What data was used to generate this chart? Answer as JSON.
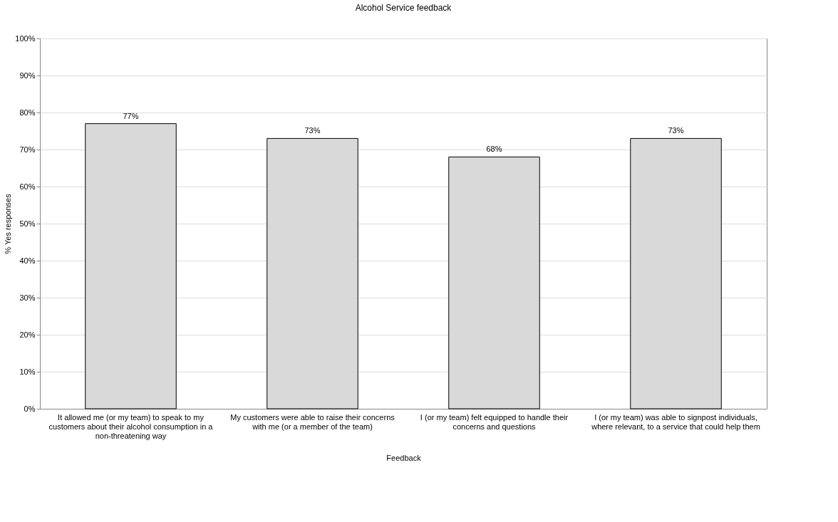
{
  "chart_data": {
    "type": "bar",
    "title": "Alcohol Service feedback",
    "xlabel": "Feedback",
    "ylabel": "% Yes responses",
    "categories": [
      "It allowed me (or my team) to speak to my customers about their alcohol consumption in a non-threatening way",
      "My customers were able to raise their concerns with me (or a member of the team)",
      "I (or my team) felt equipped to handle their concerns and questions",
      "I (or my team) was able to signpost individuals, where relevant, to a service that could help them"
    ],
    "values": [
      77,
      73,
      68,
      73
    ],
    "value_labels": [
      "77%",
      "73%",
      "68%",
      "73%"
    ],
    "color": "#d9d9d9",
    "ylim": [
      0,
      100
    ],
    "yticks": [
      {
        "value": 0,
        "label": "0%"
      },
      {
        "value": 10,
        "label": "10%"
      },
      {
        "value": 20,
        "label": "20%"
      },
      {
        "value": 30,
        "label": "30%"
      },
      {
        "value": 40,
        "label": "40%"
      },
      {
        "value": 50,
        "label": "50%"
      },
      {
        "value": 60,
        "label": "60%"
      },
      {
        "value": 70,
        "label": "70%"
      },
      {
        "value": 80,
        "label": "80%"
      },
      {
        "value": 90,
        "label": "90%"
      },
      {
        "value": 100,
        "label": "100%"
      }
    ],
    "grid": "y"
  }
}
